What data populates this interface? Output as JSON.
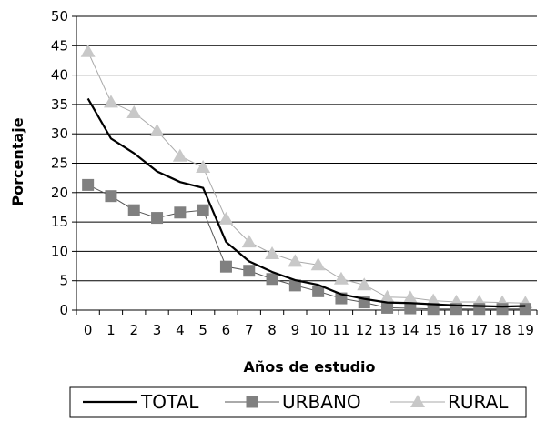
{
  "chart_data": {
    "type": "line",
    "title": "",
    "xlabel": "Años de estudio",
    "ylabel": "Porcentaje",
    "x": [
      0,
      1,
      2,
      3,
      4,
      5,
      6,
      7,
      8,
      9,
      10,
      11,
      12,
      13,
      14,
      15,
      16,
      17,
      18,
      19
    ],
    "x_tick_labels": [
      "0",
      "1",
      "2",
      "3",
      "4",
      "5",
      "6",
      "7",
      "8",
      "9",
      "10",
      "11",
      "12",
      "13",
      "14",
      "15",
      "16",
      "17",
      "18",
      "19"
    ],
    "ylim": [
      0,
      50
    ],
    "y_ticks": [
      0,
      5,
      10,
      15,
      20,
      25,
      30,
      35,
      40,
      45,
      50
    ],
    "y_tick_labels": [
      "0",
      "5",
      "10",
      "15",
      "20",
      "25",
      "30",
      "35",
      "40",
      "45",
      "50"
    ],
    "grid": "horizontal",
    "legend_position": "bottom",
    "series": [
      {
        "name": "TOTAL",
        "marker": "none",
        "color": "#000000",
        "values": [
          36.0,
          29.2,
          26.7,
          23.6,
          21.8,
          20.8,
          11.6,
          8.3,
          6.5,
          5.1,
          4.3,
          2.7,
          1.9,
          1.3,
          1.2,
          1.0,
          0.8,
          0.7,
          0.6,
          0.7
        ]
      },
      {
        "name": "URBANO",
        "marker": "square",
        "color": "#808080",
        "values": [
          21.3,
          19.4,
          17.0,
          15.7,
          16.6,
          17.0,
          7.4,
          6.7,
          5.3,
          4.2,
          3.2,
          2.0,
          1.3,
          0.4,
          0.3,
          0.2,
          0.2,
          0.2,
          0.2,
          0.2
        ]
      },
      {
        "name": "RURAL",
        "marker": "triangle",
        "color": "#c8c8c8",
        "values": [
          44.0,
          35.4,
          33.6,
          30.5,
          26.2,
          24.3,
          15.5,
          11.6,
          9.6,
          8.3,
          7.7,
          5.3,
          4.3,
          2.2,
          2.1,
          1.6,
          1.4,
          1.4,
          1.3,
          1.2
        ]
      }
    ]
  }
}
